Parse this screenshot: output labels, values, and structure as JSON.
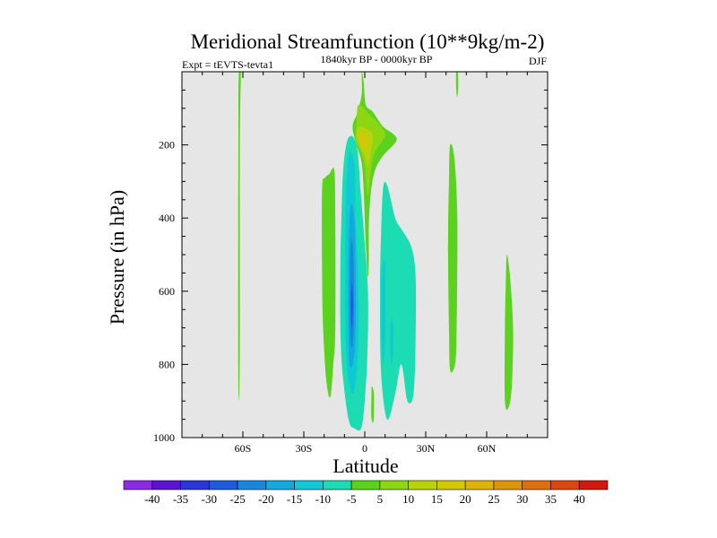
{
  "chart_data": {
    "type": "contour",
    "title": "Meridional Streamfunction (10**9kg/m-2)",
    "subtitle_left": "Expt = tEVTS-tevta1",
    "subtitle_center": "1840kyr BP - 0000kyr BP",
    "subtitle_right": "DJF",
    "xlabel": "Latitude",
    "ylabel": "Pressure (in hPa)",
    "xlim": [
      -90,
      90
    ],
    "ylim": [
      1000,
      0
    ],
    "x_ticks": [
      {
        "value": -60,
        "label": "60S"
      },
      {
        "value": -30,
        "label": "30S"
      },
      {
        "value": 0,
        "label": "0"
      },
      {
        "value": 30,
        "label": "30N"
      },
      {
        "value": 60,
        "label": "60N"
      }
    ],
    "y_ticks": [
      {
        "value": 200,
        "label": "200"
      },
      {
        "value": 400,
        "label": "400"
      },
      {
        "value": 600,
        "label": "600"
      },
      {
        "value": 800,
        "label": "800"
      },
      {
        "value": 1000,
        "label": "1000"
      }
    ],
    "background_color": "#e6e6e6",
    "colorbar": {
      "labels": [
        "-40",
        "-35",
        "-30",
        "-25",
        "-20",
        "-15",
        "-10",
        "-5",
        "5",
        "10",
        "15",
        "20",
        "25",
        "30",
        "35",
        "40"
      ],
      "colors": [
        "#8a2be2",
        "#5a14d0",
        "#2c36d6",
        "#1f5ad8",
        "#1a86dc",
        "#14a8dc",
        "#10c8d6",
        "#1cdcb4",
        "#5ad21e",
        "#8cd614",
        "#b8d20c",
        "#d2c80a",
        "#dcb40a",
        "#dc960c",
        "#dc7010",
        "#dc4612",
        "#d01a10"
      ]
    },
    "regions": [
      {
        "name": "sh-high-lat-band",
        "level": "5",
        "color": "#5ad21e",
        "points": [
          [
            -62,
            0
          ],
          [
            -61,
            0
          ],
          [
            -61.5,
            200
          ],
          [
            -61.5,
            750
          ],
          [
            -62,
            900
          ],
          [
            -62.3,
            750
          ],
          [
            -62.2,
            200
          ]
        ]
      },
      {
        "name": "positive-cell-30s",
        "level": "5",
        "color": "#5ad21e",
        "points": [
          [
            -17.5,
            280
          ],
          [
            -15,
            270
          ],
          [
            -14.5,
            400
          ],
          [
            -14.5,
            700
          ],
          [
            -15.5,
            800
          ],
          [
            -17,
            890
          ],
          [
            -19,
            840
          ],
          [
            -20.5,
            700
          ],
          [
            -21,
            550
          ],
          [
            -21,
            320
          ],
          [
            -19.5,
            290
          ]
        ]
      },
      {
        "name": "negative-cell-outer",
        "level": "-5",
        "color": "#1cdcb4",
        "points": [
          [
            -8,
            180
          ],
          [
            -4,
            200
          ],
          [
            -2,
            330
          ],
          [
            0,
            470
          ],
          [
            1.5,
            590
          ],
          [
            1.5,
            730
          ],
          [
            0.5,
            860
          ],
          [
            -1.5,
            970
          ],
          [
            -5,
            975
          ],
          [
            -8,
            950
          ],
          [
            -11,
            820
          ],
          [
            -12,
            700
          ],
          [
            -12,
            520
          ],
          [
            -11.5,
            400
          ],
          [
            -10.5,
            260
          ]
        ]
      },
      {
        "name": "negative-cell-mid",
        "level": "-10",
        "color": "#10c8d6",
        "points": [
          [
            -7.5,
            220
          ],
          [
            -5,
            260
          ],
          [
            -4.5,
            400
          ],
          [
            -3.5,
            550
          ],
          [
            -3,
            700
          ],
          [
            -4,
            820
          ],
          [
            -6,
            880
          ],
          [
            -8.5,
            820
          ],
          [
            -9.5,
            700
          ],
          [
            -9.5,
            450
          ],
          [
            -9,
            300
          ]
        ]
      },
      {
        "name": "negative-cell-inner",
        "level": "-15",
        "color": "#14a8dc",
        "points": [
          [
            -6.5,
            360
          ],
          [
            -5,
            420
          ],
          [
            -4.5,
            560
          ],
          [
            -4.5,
            700
          ],
          [
            -5.5,
            790
          ],
          [
            -7.5,
            800
          ],
          [
            -8,
            680
          ],
          [
            -8,
            500
          ],
          [
            -7.5,
            400
          ]
        ]
      },
      {
        "name": "negative-cell-core",
        "level": "-20",
        "color": "#1a86dc",
        "points": [
          [
            -6.3,
            460
          ],
          [
            -5.5,
            520
          ],
          [
            -5.3,
            660
          ],
          [
            -6,
            750
          ],
          [
            -7.2,
            720
          ],
          [
            -7.3,
            560
          ],
          [
            -7,
            480
          ]
        ]
      },
      {
        "name": "negative-cell-peak",
        "level": "-25",
        "color": "#1f5ad8",
        "points": [
          [
            -6.2,
            580
          ],
          [
            -5.8,
            640
          ],
          [
            -6.4,
            700
          ],
          [
            -6.8,
            650
          ],
          [
            -6.7,
            600
          ]
        ]
      },
      {
        "name": "upper-jet-outer",
        "level": "5",
        "color": "#5ad21e",
        "points": [
          [
            -1.5,
            0
          ],
          [
            -0.5,
            30
          ],
          [
            0.5,
            90
          ],
          [
            4,
            110
          ],
          [
            9,
            150
          ],
          [
            14,
            170
          ],
          [
            15.5,
            190
          ],
          [
            9,
            230
          ],
          [
            5,
            270
          ],
          [
            3,
            330
          ],
          [
            2,
            420
          ],
          [
            2,
            520
          ],
          [
            1.5,
            560
          ],
          [
            0.5,
            470
          ],
          [
            -0.5,
            330
          ],
          [
            -1.5,
            250
          ],
          [
            -4,
            200
          ],
          [
            -6,
            150
          ],
          [
            -3.5,
            110
          ],
          [
            -1.5,
            60
          ]
        ]
      },
      {
        "name": "upper-jet-10",
        "level": "10",
        "color": "#8cd614",
        "points": [
          [
            -3,
            90
          ],
          [
            3,
            120
          ],
          [
            8,
            150
          ],
          [
            10,
            175
          ],
          [
            5,
            220
          ],
          [
            3,
            270
          ],
          [
            1.5,
            340
          ],
          [
            0,
            260
          ],
          [
            -2,
            220
          ],
          [
            -4.5,
            185
          ],
          [
            -4,
            140
          ]
        ]
      },
      {
        "name": "upper-jet-15",
        "level": "15",
        "color": "#b8d20c",
        "points": [
          [
            -3,
            150
          ],
          [
            2,
            160
          ],
          [
            4,
            180
          ],
          [
            3,
            220
          ],
          [
            1.5,
            260
          ],
          [
            0,
            230
          ],
          [
            -2.5,
            200
          ],
          [
            -4,
            175
          ]
        ]
      },
      {
        "name": "upper-jet-core",
        "level": "20",
        "color": "#d2c80a",
        "points": [
          [
            -2,
            168
          ],
          [
            1,
            172
          ],
          [
            2,
            190
          ],
          [
            0.5,
            210
          ],
          [
            -1.5,
            205
          ],
          [
            -3,
            188
          ]
        ]
      },
      {
        "name": "nh-negative-cell",
        "level": "-5",
        "color": "#1cdcb4",
        "points": [
          [
            9,
            320
          ],
          [
            11,
            310
          ],
          [
            15,
            400
          ],
          [
            18,
            430
          ],
          [
            23,
            480
          ],
          [
            25,
            560
          ],
          [
            25,
            730
          ],
          [
            24,
            880
          ],
          [
            21,
            900
          ],
          [
            18,
            800
          ],
          [
            15,
            880
          ],
          [
            11,
            950
          ],
          [
            8,
            820
          ],
          [
            7.5,
            600
          ],
          [
            8,
            450
          ]
        ]
      },
      {
        "name": "nh-negative-inner-a",
        "level": "-10",
        "color": "#10c8d6",
        "points": [
          [
            9,
            520
          ],
          [
            10,
            540
          ],
          [
            10,
            720
          ],
          [
            9,
            800
          ],
          [
            8.3,
            700
          ],
          [
            8.5,
            580
          ]
        ]
      },
      {
        "name": "nh-negative-inner-b",
        "level": "-10",
        "color": "#10c8d6",
        "points": [
          [
            13,
            680
          ],
          [
            14,
            690
          ],
          [
            14,
            760
          ],
          [
            13,
            800
          ],
          [
            12.5,
            740
          ]
        ]
      },
      {
        "name": "eq-surface-cell",
        "level": "5",
        "color": "#5ad21e",
        "points": [
          [
            3.5,
            860
          ],
          [
            4.5,
            880
          ],
          [
            4.5,
            940
          ],
          [
            4,
            960
          ],
          [
            3.2,
            940
          ],
          [
            3.3,
            880
          ]
        ]
      },
      {
        "name": "nh-midlat-upper",
        "level": "5",
        "color": "#5ad21e",
        "points": [
          [
            45,
            0
          ],
          [
            45.8,
            0
          ],
          [
            46,
            40
          ],
          [
            45.5,
            70
          ],
          [
            45,
            45
          ]
        ]
      },
      {
        "name": "nh-midlat-band",
        "level": "5",
        "color": "#5ad21e",
        "points": [
          [
            42,
            200
          ],
          [
            44,
            230
          ],
          [
            45.5,
            380
          ],
          [
            45.5,
            570
          ],
          [
            45,
            760
          ],
          [
            44,
            810
          ],
          [
            42,
            815
          ],
          [
            41.5,
            720
          ],
          [
            41,
            480
          ],
          [
            41.5,
            280
          ]
        ]
      },
      {
        "name": "nh-high-lat-band",
        "level": "5",
        "color": "#5ad21e",
        "points": [
          [
            70,
            500
          ],
          [
            71.5,
            560
          ],
          [
            73,
            700
          ],
          [
            72.5,
            850
          ],
          [
            71,
            915
          ],
          [
            69,
            900
          ],
          [
            69,
            700
          ],
          [
            69.5,
            560
          ]
        ]
      }
    ]
  }
}
